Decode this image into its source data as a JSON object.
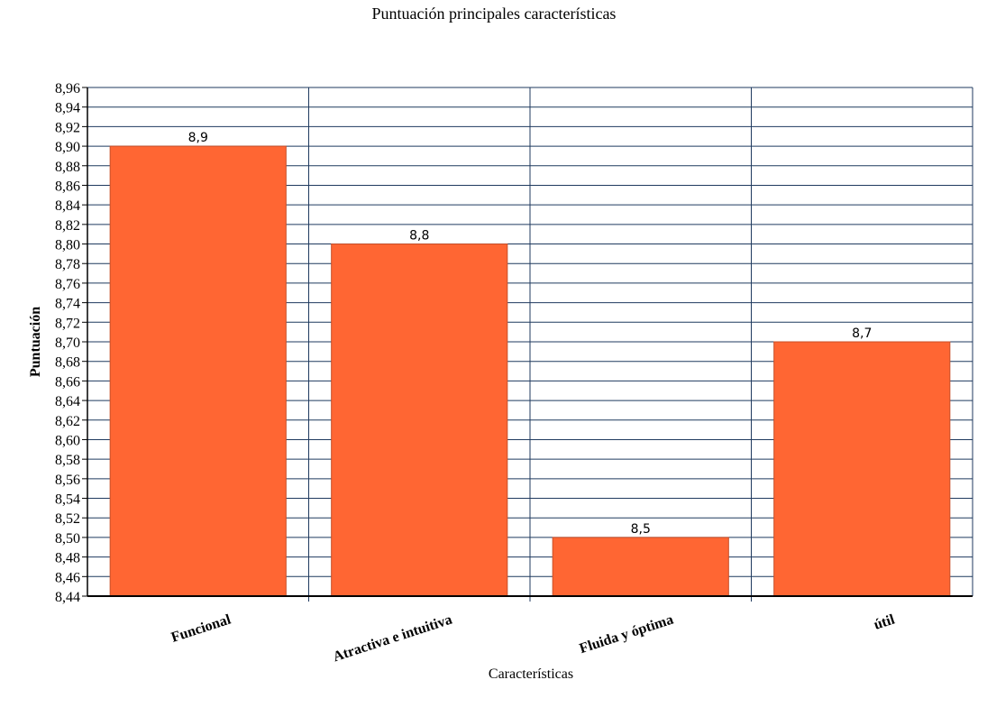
{
  "chart_data": {
    "type": "bar",
    "title": "Puntuación principales características",
    "xlabel": "Características",
    "ylabel": "Puntuación",
    "categories": [
      "Funcional",
      "Atractiva e intuitiva",
      "Fluida y óptima",
      "útil"
    ],
    "values": [
      8.9,
      8.8,
      8.5,
      8.7
    ],
    "data_labels": [
      "8,9",
      "8,8",
      "8,5",
      "8,7"
    ],
    "ylim": [
      8.44,
      8.96
    ],
    "y_ticks": [
      "8,44",
      "8,46",
      "8,48",
      "8,50",
      "8,52",
      "8,54",
      "8,56",
      "8,58",
      "8,60",
      "8,62",
      "8,64",
      "8,66",
      "8,68",
      "8,70",
      "8,72",
      "8,74",
      "8,76",
      "8,78",
      "8,80",
      "8,82",
      "8,84",
      "8,86",
      "8,88",
      "8,90",
      "8,92",
      "8,94",
      "8,96"
    ],
    "grid": true,
    "legend": "none",
    "colors": {
      "bar": "#ff6633",
      "bar_stroke": "#c8502a",
      "grid": "#1f3a5f",
      "axis": "#000000"
    }
  }
}
